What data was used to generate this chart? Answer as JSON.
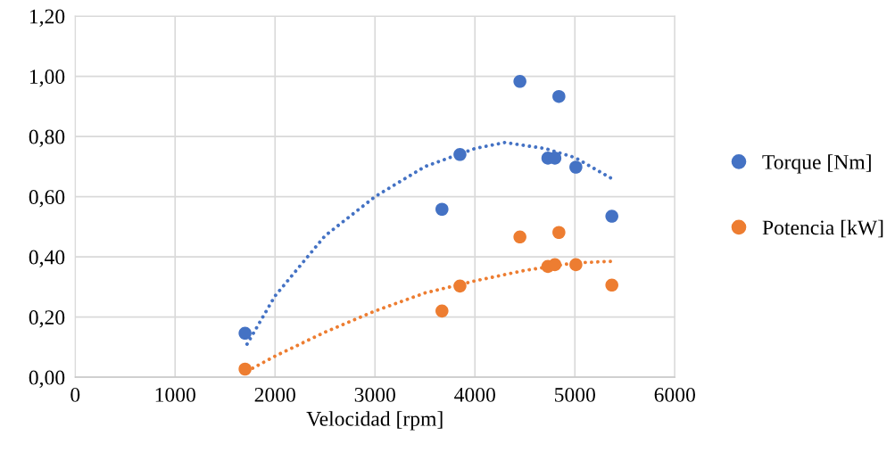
{
  "chart_data": {
    "type": "scatter",
    "xlabel": "Velocidad [rpm]",
    "xlim": [
      0,
      6000
    ],
    "xticks": [
      0,
      1000,
      2000,
      3000,
      4000,
      5000,
      6000
    ],
    "ylim": [
      0,
      1.2
    ],
    "yticks": [
      {
        "value": 0,
        "label": "0,00"
      },
      {
        "value": 0.2,
        "label": "0,20"
      },
      {
        "value": 0.4,
        "label": "0,40"
      },
      {
        "value": 0.6,
        "label": "0,60"
      },
      {
        "value": 0.8,
        "label": "0,80"
      },
      {
        "value": 1.0,
        "label": "1,00"
      },
      {
        "value": 1.2,
        "label": "1,20"
      }
    ],
    "grid": true,
    "legend": "right",
    "marker": "circle",
    "series": [
      {
        "name": "Torque [Nm]",
        "color": "#4472c4",
        "x": [
          1700,
          3670,
          3850,
          4450,
          4840,
          4730,
          4800,
          5010,
          5370
        ],
        "values": [
          0.146,
          0.558,
          0.74,
          0.983,
          0.933,
          0.728,
          0.728,
          0.698,
          0.535
        ]
      },
      {
        "name": "Potencia [kW]",
        "color": "#ed7d31",
        "x": [
          1700,
          3670,
          3850,
          4450,
          4840,
          4730,
          4800,
          5010,
          5370
        ],
        "values": [
          0.027,
          0.22,
          0.303,
          0.466,
          0.481,
          0.368,
          0.374,
          0.374,
          0.306
        ]
      },
      {
        "type": "line",
        "color": "#4472c4",
        "line_style": "dotted",
        "marker": "none",
        "x": [
          1720,
          2000,
          2500,
          3000,
          3500,
          4000,
          4300,
          4700,
          5000,
          5370
        ],
        "values": [
          0.11,
          0.27,
          0.47,
          0.6,
          0.7,
          0.76,
          0.78,
          0.76,
          0.73,
          0.66
        ]
      },
      {
        "type": "line",
        "color": "#ed7d31",
        "line_style": "dotted",
        "marker": "none",
        "x": [
          1720,
          2000,
          2500,
          3000,
          3500,
          4000,
          4500,
          5000,
          5370
        ],
        "values": [
          0.02,
          0.07,
          0.15,
          0.22,
          0.28,
          0.32,
          0.355,
          0.38,
          0.385
        ]
      }
    ]
  }
}
